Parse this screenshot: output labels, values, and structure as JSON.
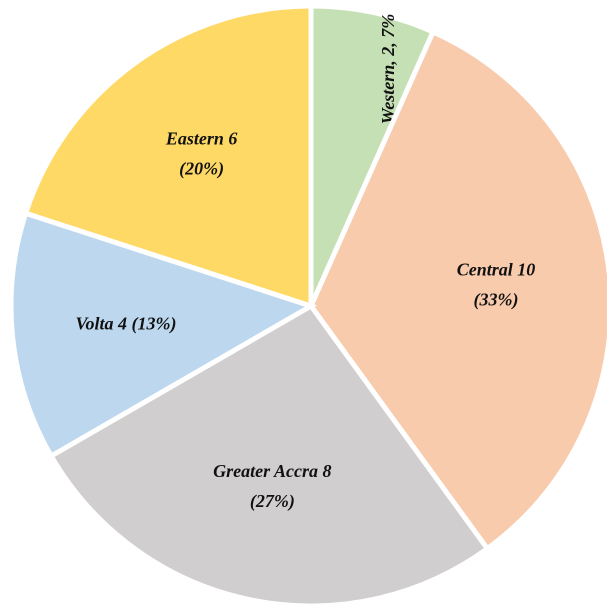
{
  "chart_data": {
    "type": "pie",
    "categories": [
      "Western",
      "Central",
      "Greater Accra",
      "Volta",
      "Eastern"
    ],
    "values": [
      2,
      10,
      8,
      4,
      6
    ],
    "value_labels": [
      [
        "Western, 2, 7%"
      ],
      [
        "Central 10",
        "(33%)"
      ],
      [
        "Greater Accra 8",
        "(27%)"
      ],
      [
        "Volta 4 (13%)"
      ],
      [
        "Eastern 6",
        "(20%)"
      ]
    ],
    "colors": [
      "#c5e0b4",
      "#f8cbad",
      "#d0cece",
      "#bdd7ee",
      "#ffd966"
    ]
  }
}
